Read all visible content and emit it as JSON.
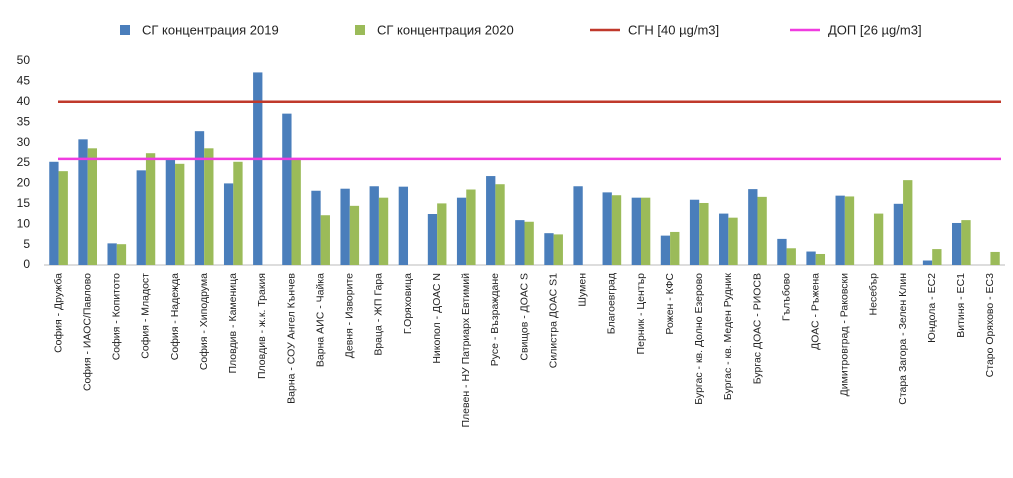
{
  "chart_data": {
    "type": "bar",
    "categories": [
      "София - Дружба",
      "София - ИАОС/Павлово",
      "София - Копитото",
      "София - Младост",
      "София - Надежда",
      "София - Хиподрума",
      "Пловдив - Каменица",
      "Пловдив - ж.к. Тракия",
      "Варна - СОУ Ангел Кънчев",
      "Варна АИС - Чайка",
      "Девня - Изворите",
      "Враца - ЖП Гара",
      "Г.Оряховица",
      "Никопол - ДОАС N",
      "Плевен - НУ Патриарх Евтимий",
      "Русе - Възраждане",
      "Свищов - ДОАС S",
      "Силистра ДОАС S1",
      "Шумен",
      "Благоевград",
      "Перник - Център",
      "Рожен - КФС",
      "Бургас - кв. Долно Езерово",
      "Бургас - кв. Меден Рудник",
      "Бургас ДОАС - РИОСВ",
      "Гълъбово",
      "ДОАС - Ръжена",
      "Димитровград - Раковски",
      "Несебър",
      "Стара Загора - Зелен Клин",
      "Юндола - ЕС2",
      "Витиня - ЕС1",
      "Старо Оряхово - ЕС3"
    ],
    "series": [
      {
        "name": "СГ  концентрация 2019",
        "color": "#4a7ebb",
        "values": [
          25.3,
          30.8,
          5.3,
          23.2,
          25.8,
          32.8,
          20,
          47.2,
          37.1,
          18.2,
          18.7,
          19.3,
          19.2,
          12.5,
          16.5,
          21.8,
          11,
          7.8,
          19.3,
          17.8,
          16.5,
          7.2,
          16,
          12.6,
          18.6,
          6.4,
          3.3,
          17,
          null,
          15,
          1.1,
          10.3,
          null
        ]
      },
      {
        "name": "СГ концентрация 2020",
        "color": "#9bbb59",
        "values": [
          23,
          28.6,
          5.1,
          27.4,
          24.8,
          28.6,
          25.3,
          null,
          26,
          12.2,
          14.5,
          16.5,
          null,
          15.1,
          18.5,
          19.8,
          10.6,
          7.5,
          null,
          17.1,
          16.5,
          8.1,
          15.2,
          11.6,
          16.7,
          4.1,
          2.7,
          16.8,
          12.6,
          20.8,
          3.9,
          11,
          3.2
        ]
      }
    ],
    "reference_lines": [
      {
        "name": "СГН [40 µg/m3]",
        "value": 40,
        "color": "#c0392b"
      },
      {
        "name": "ДОП [26 µg/m3]",
        "value": 26,
        "color": "#f03ce0"
      }
    ],
    "ylim": [
      0,
      50
    ],
    "yticks": [
      0,
      5,
      10,
      15,
      20,
      25,
      30,
      35,
      40,
      45,
      50
    ],
    "grid": false
  }
}
